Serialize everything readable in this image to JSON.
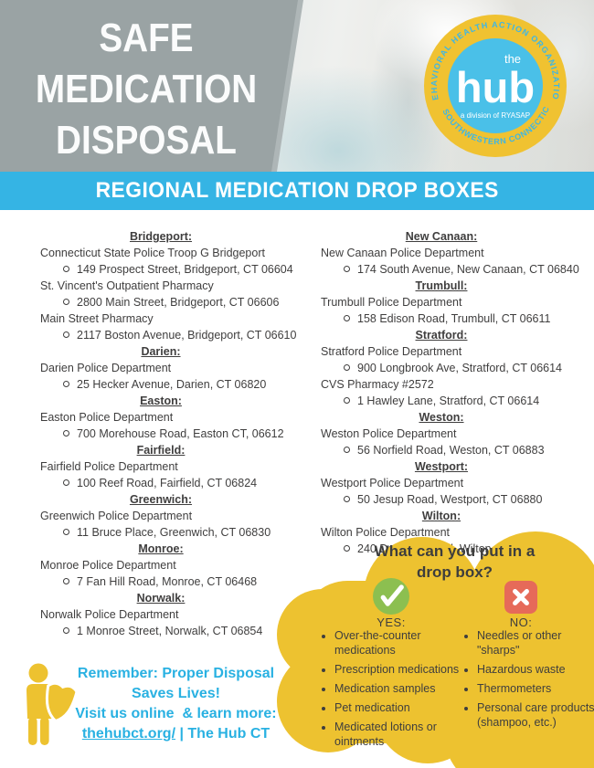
{
  "header": {
    "title_lines": [
      "SAFE",
      "MEDICATION",
      "DISPOSAL"
    ],
    "banner": "REGIONAL MEDICATION DROP BOXES"
  },
  "logo": {
    "arc_top": "BEHAVIORAL HEALTH ACTION ORGANIZATION",
    "arc_bottom": "OF SOUTHWESTERN CONNECTICUT",
    "the": "the",
    "name": "hub",
    "division": "a division of RYASAP"
  },
  "locations": {
    "left_column": [
      {
        "city": "Bridgeport:",
        "entries": [
          {
            "name": "Connecticut State Police Troop G Bridgeport",
            "address": "149 Prospect Street, Bridgeport, CT 06604"
          },
          {
            "name": "St. Vincent's Outpatient Pharmacy",
            "address": "2800 Main Street, Bridgeport, CT 06606"
          },
          {
            "name": "Main Street Pharmacy",
            "address": "2117 Boston Avenue, Bridgeport, CT 06610"
          }
        ]
      },
      {
        "city": "Darien:",
        "entries": [
          {
            "name": "Darien Police Department",
            "address": "25 Hecker Avenue, Darien, CT 06820"
          }
        ]
      },
      {
        "city": "Easton:",
        "entries": [
          {
            "name": "Easton Police Department",
            "address": "700 Morehouse Road, Easton CT, 06612"
          }
        ]
      },
      {
        "city": "Fairfield:",
        "entries": [
          {
            "name": "Fairfield Police Department",
            "address": "100 Reef Road, Fairfield, CT 06824"
          }
        ]
      },
      {
        "city": "Greenwich:",
        "entries": [
          {
            "name": "Greenwich Police Department",
            "address": "11 Bruce Place, Greenwich, CT 06830"
          }
        ]
      },
      {
        "city": "Monroe:",
        "entries": [
          {
            "name": "Monroe Police Department",
            "address": "7 Fan Hill Road, Monroe, CT 06468"
          }
        ]
      },
      {
        "city": "Norwalk:",
        "entries": [
          {
            "name": "Norwalk Police Department",
            "address": "1 Monroe Street, Norwalk, CT 06854"
          }
        ]
      }
    ],
    "right_column": [
      {
        "city": "New Canaan:",
        "entries": [
          {
            "name": "New Canaan Police Department",
            "address": "174 South Avenue, New Canaan, CT 06840"
          }
        ]
      },
      {
        "city": "Trumbull:",
        "entries": [
          {
            "name": "Trumbull Police Department",
            "address": "158 Edison Road, Trumbull, CT 06611"
          }
        ]
      },
      {
        "city": "Stratford:",
        "entries": [
          {
            "name": "Stratford Police Department",
            "address": "900 Longbrook Ave, Stratford, CT 06614"
          },
          {
            "name": "CVS Pharmacy #2572",
            "address": "1 Hawley Lane, Stratford, CT 06614"
          }
        ]
      },
      {
        "city": "Weston:",
        "entries": [
          {
            "name": "Weston Police Department",
            "address": "56 Norfield Road, Weston, CT 06883"
          }
        ]
      },
      {
        "city": "Westport:",
        "entries": [
          {
            "name": "Westport Police Department",
            "address": "50 Jesup Road, Westport, CT 06880"
          }
        ]
      },
      {
        "city": "Wilton:",
        "entries": [
          {
            "name": "Wilton Police Department",
            "address": "240 Danbury Road, Wilton, CT 06897"
          }
        ]
      }
    ]
  },
  "dropbox_info": {
    "question_line1": "What can you put in a",
    "question_line2": "drop box?",
    "yes_label": "YES:",
    "no_label": "NO:",
    "icons": {
      "yes": "check-icon",
      "no": "x-icon"
    },
    "yes_items": [
      "Over-the-counter medications",
      "Prescription medications",
      "Medication samples",
      "Pet medication",
      "Medicated lotions or ointments"
    ],
    "no_items": [
      "Needles or other \"sharps\"",
      "Hazardous waste",
      "Thermometers",
      "Personal care products (shampoo, etc.)"
    ]
  },
  "footer": {
    "line1": "Remember: Proper Disposal",
    "line2": "Saves Lives!",
    "line3": "Visit us online  & learn more:",
    "link": "thehubct.org/",
    "link_suffix": " | The Hub CT"
  },
  "colors": {
    "accent_yellow": "#edc230",
    "banner_teal": "#35b4e4",
    "footer_teal": "#29b1e2",
    "header_gray": "#9aa3a4",
    "logo_ring_yellow": "#f0c231",
    "logo_inner_blue": "#4ac0e8",
    "yes_green": "#8cbf50",
    "no_red": "#e66a59",
    "body_text": "#3f3e3e"
  }
}
